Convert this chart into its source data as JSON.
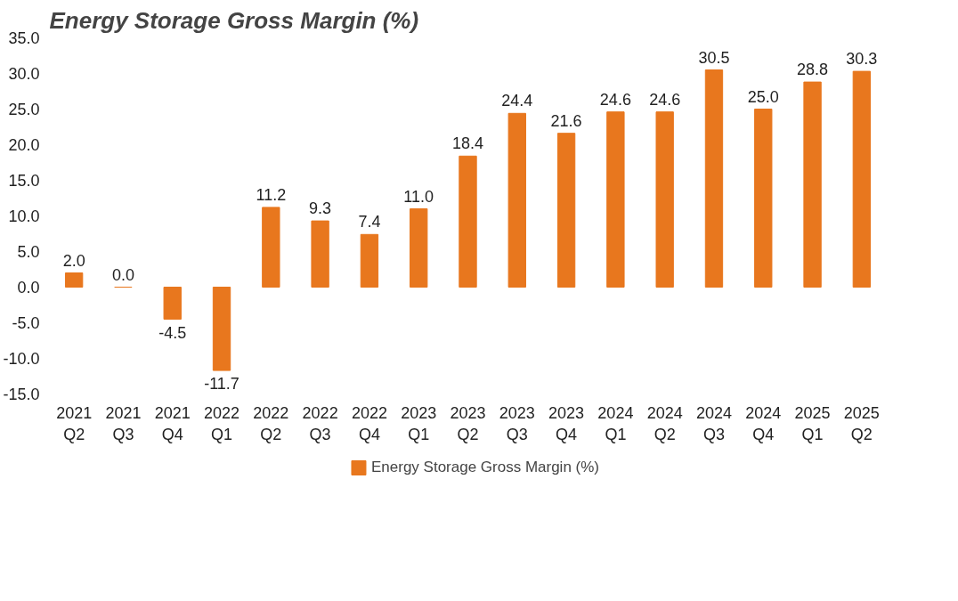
{
  "chart_data": {
    "type": "bar",
    "title": "Energy Storage Gross Margin (%)",
    "categories": [
      "2021\nQ2",
      "2021\nQ3",
      "2021\nQ4",
      "2022\nQ1",
      "2022\nQ2",
      "2022\nQ3",
      "2022\nQ4",
      "2023\nQ1",
      "2023\nQ2",
      "2023\nQ3",
      "2023\nQ4",
      "2024\nQ1",
      "2024\nQ2",
      "2024\nQ3",
      "2024\nQ4",
      "2025\nQ1",
      "2025\nQ2"
    ],
    "series": [
      {
        "name": "Energy Storage Gross Margin (%)",
        "color": "#e8771e",
        "values": [
          2.0,
          0.0,
          -4.5,
          -11.7,
          11.2,
          9.3,
          7.4,
          11.0,
          18.4,
          24.4,
          21.6,
          24.6,
          24.6,
          30.5,
          25.0,
          28.8,
          30.3
        ],
        "value_labels": [
          "2.0",
          "0.0",
          "-4.5",
          "-11.7",
          "11.2",
          "9.3",
          "7.4",
          "11.0",
          "18.4",
          "24.4",
          "21.6",
          "24.6",
          "24.6",
          "30.5",
          "25.0",
          "28.8",
          "30.3"
        ]
      }
    ],
    "ylim": [
      -15,
      35
    ],
    "yticks": [
      {
        "value": -15,
        "label": "-15.0"
      },
      {
        "value": -10,
        "label": "-10.0"
      },
      {
        "value": -5,
        "label": "-5.0"
      },
      {
        "value": 0,
        "label": "0.0"
      },
      {
        "value": 5,
        "label": "5.0"
      },
      {
        "value": 10,
        "label": "10.0"
      },
      {
        "value": 15,
        "label": "15.0"
      },
      {
        "value": 20,
        "label": "20.0"
      },
      {
        "value": 25,
        "label": "25.0"
      },
      {
        "value": 30,
        "label": "30.0"
      },
      {
        "value": 35,
        "label": "35.0"
      }
    ],
    "grid": false,
    "legend": "bottom"
  }
}
